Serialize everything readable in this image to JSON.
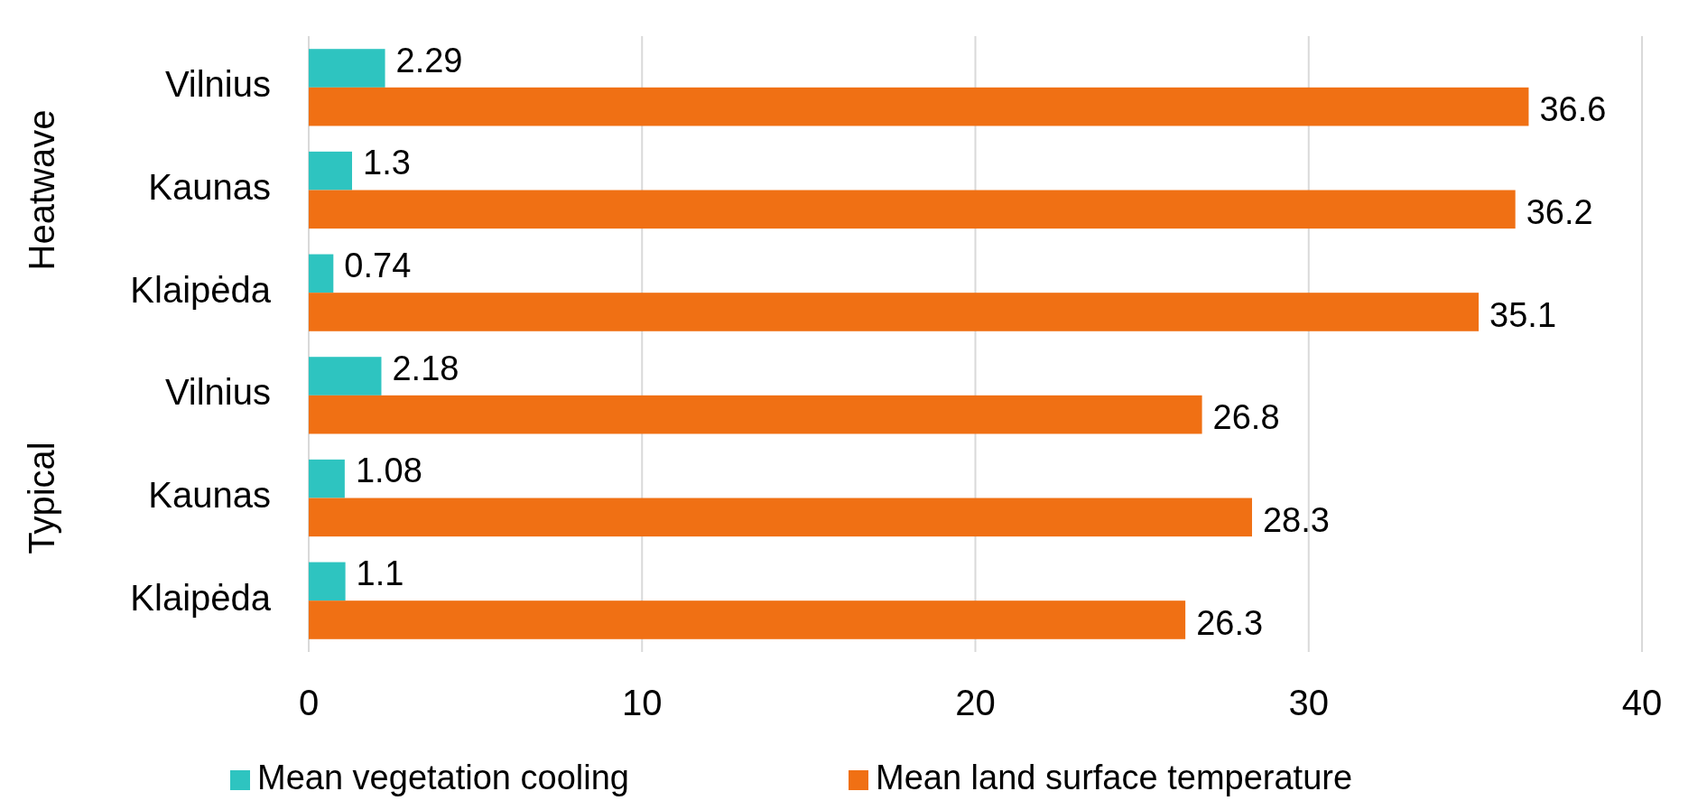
{
  "chart_data": {
    "type": "bar",
    "orientation": "horizontal",
    "categories": [
      "Vilnius",
      "Kaunas",
      "Klaipėda",
      "Vilnius",
      "Kaunas",
      "Klaipėda"
    ],
    "series": [
      {
        "name": "Mean vegetation cooling",
        "color": "#2ec4c0",
        "values": [
          2.29,
          1.3,
          0.74,
          2.18,
          1.08,
          1.1
        ]
      },
      {
        "name": "Mean land surface temperature",
        "color": "#f07014",
        "values": [
          36.6,
          36.2,
          35.1,
          26.8,
          28.3,
          26.3
        ]
      }
    ],
    "xlim": [
      0,
      40
    ],
    "xticks": [
      0,
      10,
      20,
      30,
      40
    ],
    "grid": "x",
    "legend": "bottom",
    "data_labels": true,
    "annotations": [
      "Heatwave",
      "Typical"
    ]
  }
}
